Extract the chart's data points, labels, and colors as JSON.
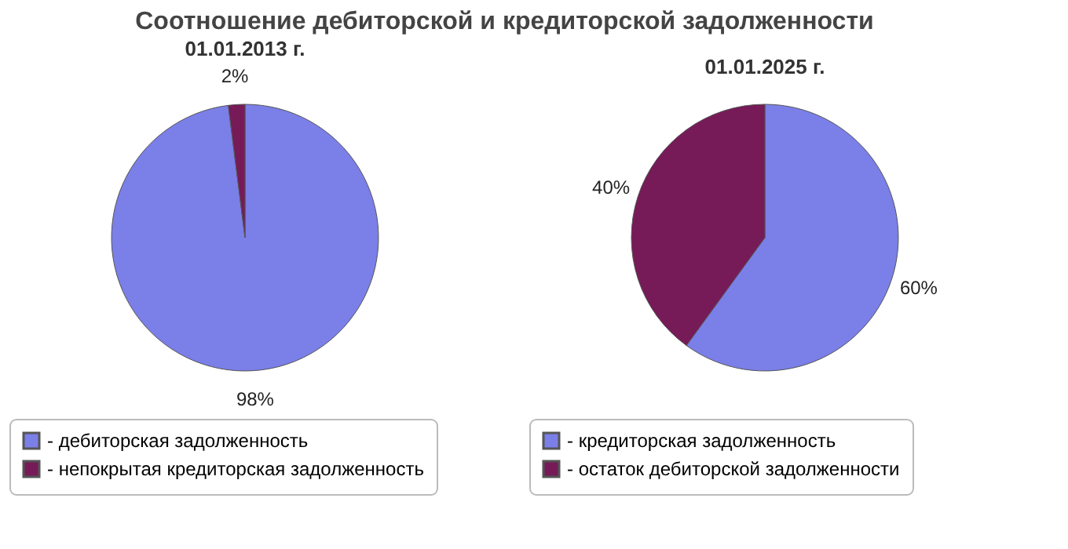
{
  "chart_data": [
    {
      "type": "pie",
      "title": "01.01.2013 г.",
      "annotations": [
        "Соотношение дебиторской и кредиторской задолженности"
      ],
      "categories": [
        "- дебиторская задолженность",
        "- непокрытая кредиторская задолженность"
      ],
      "values": [
        98,
        2
      ],
      "colors": [
        "#7b7fe8",
        "#761b58"
      ],
      "value_labels": [
        "98%",
        "2%"
      ],
      "legend": "bottom"
    },
    {
      "type": "pie",
      "title": "01.01.2025 г.",
      "categories": [
        "- кредиторская задолженность",
        "- остаток дебиторской задолженности"
      ],
      "values": [
        60,
        40
      ],
      "colors": [
        "#7b7fe8",
        "#761b58"
      ],
      "value_labels": [
        "60%",
        "40%"
      ],
      "legend": "bottom"
    }
  ]
}
